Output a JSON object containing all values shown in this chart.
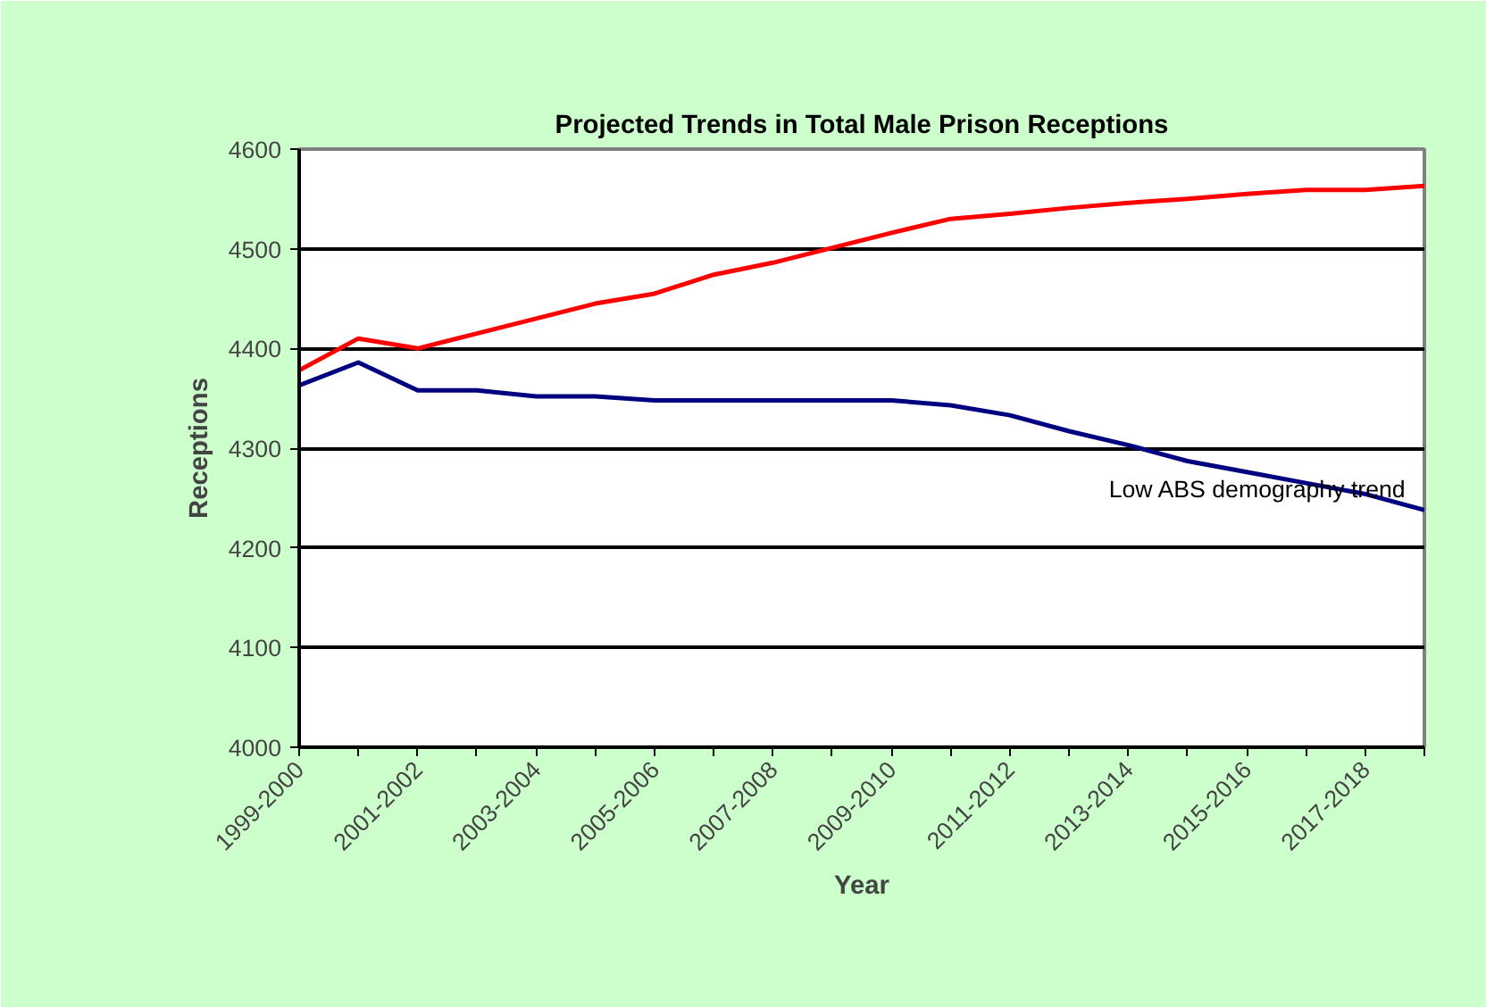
{
  "chart_data": {
    "type": "line",
    "title": "Projected Trends in Total Male Prison Receptions",
    "xlabel": "Year",
    "ylabel": "Receptions",
    "categories": [
      "1999-2000",
      null,
      "2001-2002",
      null,
      "2003-2004",
      null,
      "2005-2006",
      null,
      "2007-2008",
      null,
      "2009-2010",
      null,
      "2011-2012",
      null,
      "2013-2014",
      null,
      "2015-2016",
      null,
      "2017-2018",
      null
    ],
    "series": [
      {
        "color": "#ff0000",
        "values": [
          4378,
          4410,
          4400,
          4415,
          4430,
          4445,
          4455,
          4474,
          4486,
          4501,
          4516,
          4530,
          4535,
          4541,
          4546,
          4550,
          4555,
          4559,
          4559,
          4563
        ]
      },
      {
        "name": "Low ABS demography trend",
        "color": "#000080",
        "values": [
          4363,
          4386,
          4358,
          4358,
          4352,
          4352,
          4348,
          4348,
          4348,
          4348,
          4348,
          4343,
          4333,
          4317,
          4303,
          4287,
          4276,
          4265,
          4254,
          4238
        ]
      }
    ],
    "ylim": [
      4000,
      4600
    ],
    "yticks": [
      4000,
      4100,
      4200,
      4300,
      4400,
      4500,
      4600
    ],
    "grid": "y",
    "marker": "none",
    "line_style": "solid"
  }
}
